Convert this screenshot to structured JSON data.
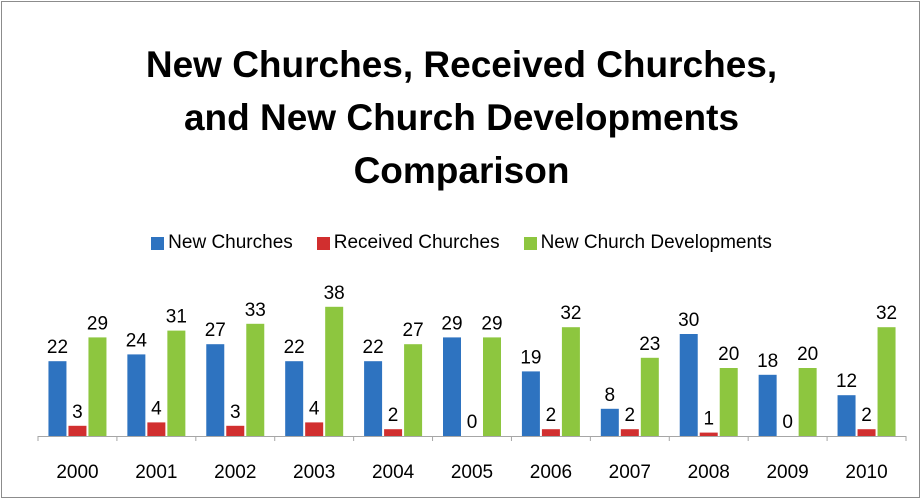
{
  "chart_data": {
    "type": "bar",
    "title_lines": [
      "New Churches, Received Churches,",
      "and New Church Developments",
      "Comparison"
    ],
    "categories": [
      "2000",
      "2001",
      "2002",
      "2003",
      "2004",
      "2005",
      "2006",
      "2007",
      "2008",
      "2009",
      "2010"
    ],
    "series": [
      {
        "name": "New Churches",
        "color": "#2e73c0",
        "values": [
          22,
          24,
          27,
          22,
          22,
          29,
          19,
          8,
          30,
          18,
          12
        ]
      },
      {
        "name": "Received Churches",
        "color": "#d12f2f",
        "values": [
          3,
          4,
          3,
          4,
          2,
          0,
          2,
          2,
          1,
          0,
          2
        ]
      },
      {
        "name": "New Church Developments",
        "color": "#8dc63f",
        "values": [
          29,
          31,
          33,
          38,
          27,
          29,
          32,
          23,
          20,
          20,
          32
        ]
      }
    ],
    "ylim": [
      0,
      38
    ],
    "grid": false,
    "legend_position": "top-center"
  }
}
